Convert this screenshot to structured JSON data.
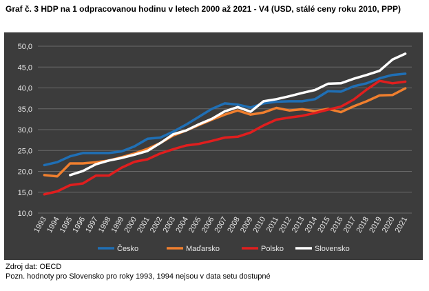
{
  "title": "Graf č. 3 HDP na 1 odpracovanou hodinu v letech 2000 až 2021 - V4 (USD, stálé ceny roku 2010, PPP)",
  "source": "Zdroj dat: OECD",
  "note": "Pozn. hodnoty pro Slovensko pro roky 1993, 1994 nejsou v data setu dostupné",
  "chart_data": {
    "type": "line",
    "title": "Graf č. 3 HDP na 1 odpracovanou hodinu v letech 2000 až 2021 - V4 (USD, stálé ceny roku 2010, PPP)",
    "xlabel": "",
    "ylabel": "",
    "ylim": [
      10,
      50
    ],
    "yticks": [
      "10,0",
      "15,0",
      "20,0",
      "25,0",
      "30,0",
      "35,0",
      "40,0",
      "45,0",
      "50,0"
    ],
    "grid": true,
    "legend_position": "bottom",
    "categories": [
      "1993",
      "1994",
      "1995",
      "1996",
      "1997",
      "1998",
      "1999",
      "2000",
      "2001",
      "2002",
      "2003",
      "2004",
      "2005",
      "2006",
      "2007",
      "2008",
      "2009",
      "2010",
      "2011",
      "2012",
      "2013",
      "2014",
      "2015",
      "2016",
      "2017",
      "2018",
      "2019",
      "2020",
      "2021"
    ],
    "series": [
      {
        "name": "Česko",
        "color": "#1f6fb5",
        "values": [
          21.5,
          22.2,
          23.6,
          24.4,
          24.4,
          24.4,
          24.8,
          26.0,
          27.8,
          28.1,
          29.5,
          31.2,
          33.1,
          35.0,
          36.3,
          36.0,
          35.3,
          36.3,
          36.7,
          36.8,
          36.8,
          37.3,
          39.2,
          39.1,
          40.4,
          41.1,
          42.3,
          43.1,
          43.4
        ]
      },
      {
        "name": "Maďarsko",
        "color": "#f07f2e",
        "values": [
          19.1,
          18.8,
          21.9,
          21.9,
          22.2,
          22.6,
          23.4,
          24.3,
          25.4,
          26.8,
          28.6,
          29.8,
          31.1,
          32.4,
          33.6,
          34.6,
          33.6,
          34.1,
          35.2,
          34.6,
          34.9,
          34.4,
          35.0,
          34.2,
          35.6,
          36.8,
          38.2,
          38.3,
          39.9
        ]
      },
      {
        "name": "Polsko",
        "color": "#e01e1e",
        "values": [
          14.5,
          15.2,
          16.7,
          17.1,
          19.0,
          19.0,
          20.9,
          22.3,
          22.9,
          24.3,
          25.3,
          26.2,
          26.6,
          27.3,
          28.1,
          28.3,
          29.3,
          31.0,
          32.4,
          32.9,
          33.3,
          34.0,
          34.8,
          35.5,
          37.2,
          39.6,
          41.7,
          41.1,
          41.5
        ]
      },
      {
        "name": "Slovensko",
        "color": "#ffffff",
        "values": [
          null,
          null,
          19.1,
          20.1,
          21.7,
          22.6,
          23.2,
          24.0,
          24.9,
          26.8,
          28.9,
          29.8,
          31.3,
          32.6,
          34.4,
          35.4,
          34.3,
          36.8,
          37.3,
          38.0,
          38.8,
          39.5,
          41.0,
          41.1,
          42.2,
          43.1,
          44.1,
          46.8,
          48.2
        ]
      }
    ]
  }
}
